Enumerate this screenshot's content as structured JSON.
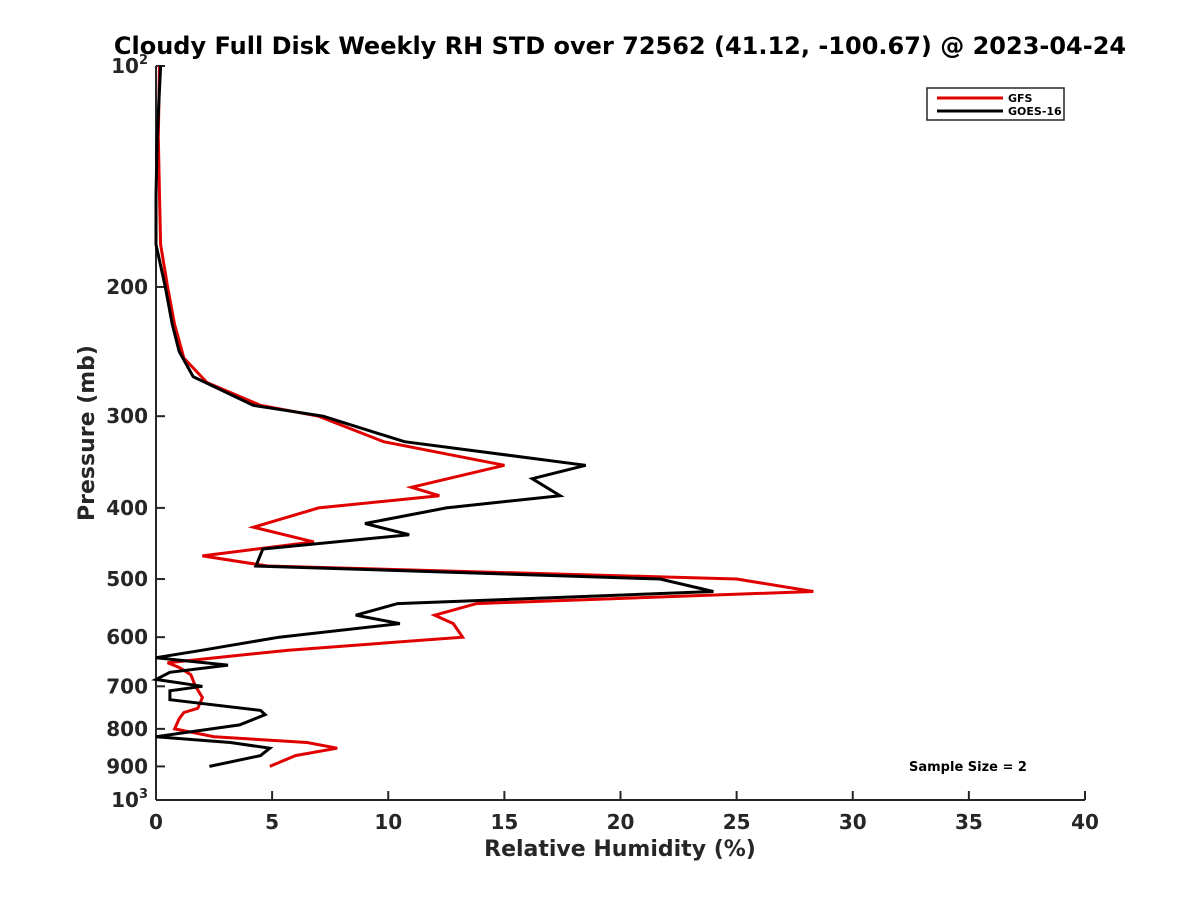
{
  "chart_data": {
    "type": "line",
    "title": "Cloudy Full Disk Weekly RH STD over 72562 (41.12, -100.67) @ 2023-04-24",
    "xlabel": "Relative Humidity (%)",
    "ylabel": "Pressure (mb)",
    "xlim": [
      0,
      40
    ],
    "ylim": [
      100,
      1000
    ],
    "y_scale": "log",
    "y_reversed": true,
    "grid": false,
    "legend_position": "top-right",
    "x_ticks": [
      "0",
      "5",
      "10",
      "15",
      "20",
      "25",
      "30",
      "35",
      "40"
    ],
    "y_ticks": [
      {
        "value": 100,
        "base": "10",
        "exp": "2"
      },
      {
        "value": 200,
        "label": "200"
      },
      {
        "value": 300,
        "label": "300"
      },
      {
        "value": 400,
        "label": "400"
      },
      {
        "value": 500,
        "label": "500"
      },
      {
        "value": 600,
        "label": "600"
      },
      {
        "value": 700,
        "label": "700"
      },
      {
        "value": 800,
        "label": "800"
      },
      {
        "value": 900,
        "label": "900"
      },
      {
        "value": 1000,
        "base": "10",
        "exp": "3"
      }
    ],
    "annotation": "Sample Size = 2",
    "series": [
      {
        "name": "GFS",
        "color": "#e00000",
        "points": [
          [
            0.15,
            100
          ],
          [
            0.1,
            125
          ],
          [
            0.15,
            150
          ],
          [
            0.2,
            175
          ],
          [
            0.5,
            200
          ],
          [
            0.8,
            225
          ],
          [
            1.2,
            250
          ],
          [
            2.2,
            270
          ],
          [
            4.5,
            290
          ],
          [
            7.0,
            300
          ],
          [
            9.8,
            325
          ],
          [
            15.0,
            350
          ],
          [
            11.0,
            375
          ],
          [
            12.2,
            385
          ],
          [
            7.0,
            400
          ],
          [
            4.2,
            425
          ],
          [
            6.8,
            445
          ],
          [
            2.0,
            465
          ],
          [
            4.8,
            480
          ],
          [
            25.0,
            500
          ],
          [
            28.3,
            520
          ],
          [
            13.8,
            540
          ],
          [
            12.0,
            560
          ],
          [
            12.8,
            575
          ],
          [
            13.2,
            600
          ],
          [
            5.7,
            625
          ],
          [
            0.5,
            650
          ],
          [
            1.0,
            660
          ],
          [
            1.5,
            675
          ],
          [
            1.7,
            700
          ],
          [
            2.0,
            725
          ],
          [
            1.8,
            750
          ],
          [
            1.2,
            760
          ],
          [
            1.0,
            775
          ],
          [
            0.8,
            800
          ],
          [
            2.5,
            820
          ],
          [
            6.5,
            835
          ],
          [
            7.8,
            850
          ],
          [
            6.0,
            870
          ],
          [
            4.9,
            900
          ]
        ]
      },
      {
        "name": "GOES-16",
        "color": "#000000",
        "points": [
          [
            0.2,
            100
          ],
          [
            0.05,
            125
          ],
          [
            0.0,
            150
          ],
          [
            0.0,
            175
          ],
          [
            0.4,
            200
          ],
          [
            0.7,
            225
          ],
          [
            1.0,
            245
          ],
          [
            1.6,
            265
          ],
          [
            4.2,
            290
          ],
          [
            7.2,
            300
          ],
          [
            10.7,
            325
          ],
          [
            18.5,
            350
          ],
          [
            16.2,
            365
          ],
          [
            17.4,
            385
          ],
          [
            12.5,
            400
          ],
          [
            9.0,
            420
          ],
          [
            10.9,
            435
          ],
          [
            4.6,
            455
          ],
          [
            4.3,
            480
          ],
          [
            21.7,
            500
          ],
          [
            24.0,
            520
          ],
          [
            10.4,
            540
          ],
          [
            8.6,
            560
          ],
          [
            10.5,
            575
          ],
          [
            5.3,
            600
          ],
          [
            2.0,
            625
          ],
          [
            0.0,
            640
          ],
          [
            3.1,
            655
          ],
          [
            0.6,
            670
          ],
          [
            0.0,
            685
          ],
          [
            2.0,
            700
          ],
          [
            0.6,
            710
          ],
          [
            0.6,
            730
          ],
          [
            4.5,
            755
          ],
          [
            4.7,
            765
          ],
          [
            3.6,
            790
          ],
          [
            0.0,
            820
          ],
          [
            3.2,
            835
          ],
          [
            4.9,
            850
          ],
          [
            4.5,
            870
          ],
          [
            2.3,
            900
          ]
        ]
      }
    ]
  }
}
